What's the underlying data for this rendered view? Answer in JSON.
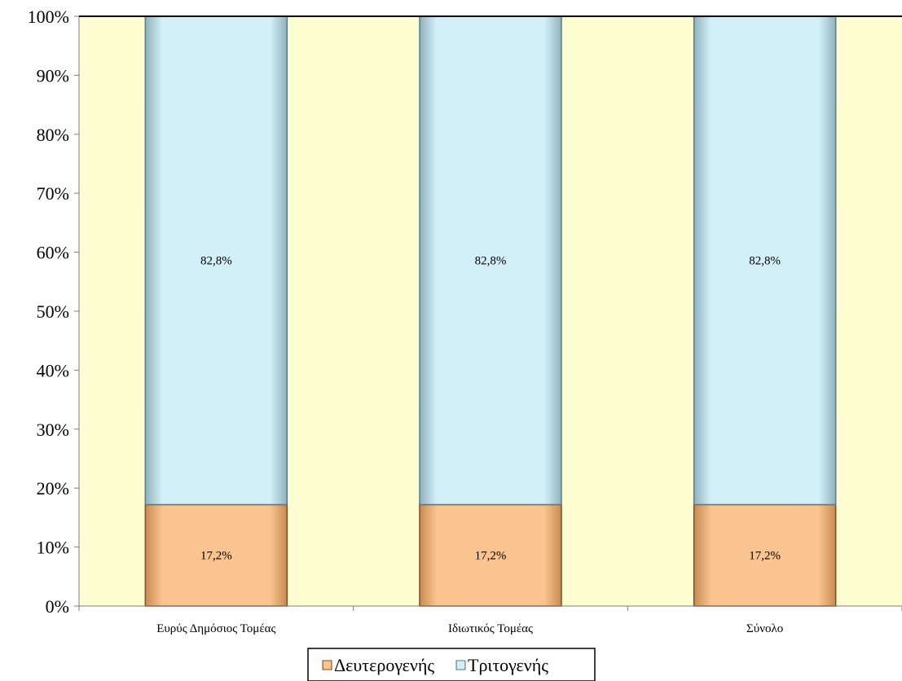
{
  "chart_data": {
    "type": "bar",
    "stacked": true,
    "percent_stacked": true,
    "title": "",
    "xlabel": "",
    "ylabel": "",
    "ylim": [
      0,
      100
    ],
    "y_ticks": [
      "0%",
      "10%",
      "20%",
      "30%",
      "40%",
      "50%",
      "60%",
      "70%",
      "80%",
      "90%",
      "100%"
    ],
    "categories": [
      "Ευρύς Δημόσιος Τομέας",
      "Ιδιωτικός Τομέας",
      "Σύνολο"
    ],
    "series": [
      {
        "name": "Δευτερογενής",
        "values": [
          17.2,
          17.2,
          17.2
        ],
        "labels": [
          "17,2%",
          "17,2%",
          "17,2%"
        ],
        "color": "#f9c48f"
      },
      {
        "name": "Τριτογενής",
        "values": [
          82.8,
          82.8,
          82.8
        ],
        "labels": [
          "82,8%",
          "82,8%",
          "82,8%"
        ],
        "color": "#d3f0f9"
      }
    ],
    "plot_background": "#fefed2",
    "legend_position": "bottom",
    "grid": false
  }
}
